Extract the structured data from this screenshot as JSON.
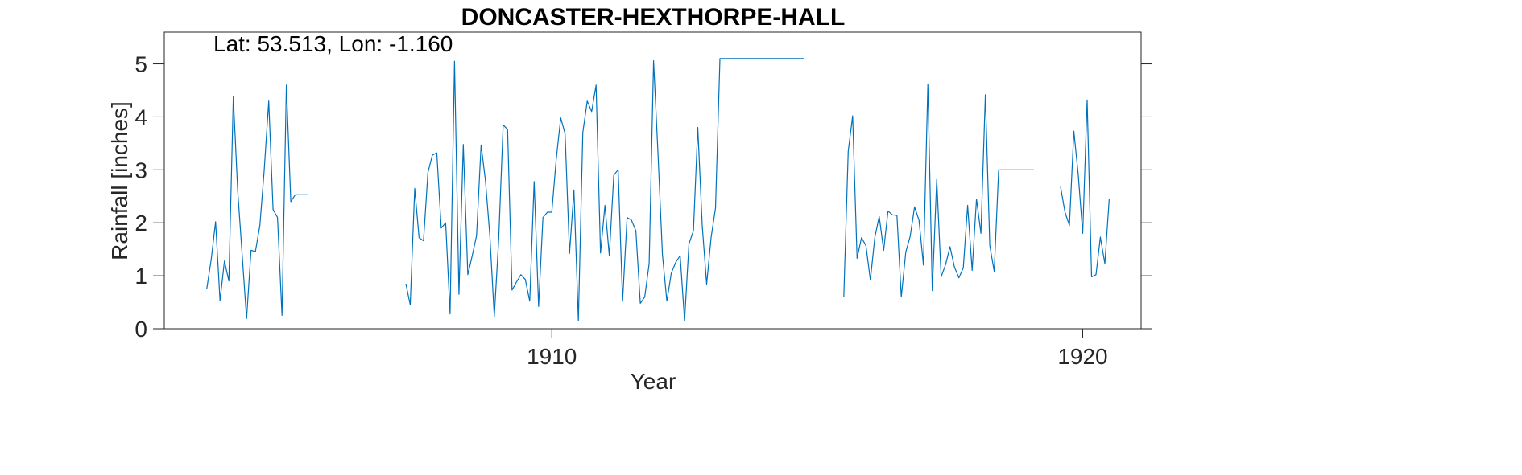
{
  "chart_data": {
    "type": "line",
    "title": "DONCASTER-HEXTHORPE-HALL",
    "annotation": "Lat: 53.513, Lon: -1.160",
    "xlabel": "Year",
    "ylabel": "Rainfall [inches]",
    "xlim": [
      1902.7,
      1921.1
    ],
    "ylim": [
      0,
      5.6
    ],
    "xticks": [
      1910,
      1920
    ],
    "xtick_labels": [
      "1910",
      "1920"
    ],
    "yticks": [
      0,
      1,
      2,
      3,
      4,
      5
    ],
    "ytick_labels": [
      "0",
      "1",
      "2",
      "3",
      "4",
      "5"
    ],
    "grid": false,
    "line_color": "#0072BD",
    "series": [
      {
        "segments": [
          {
            "x": [
              1903.5,
              1903.583,
              1903.667,
              1903.75,
              1903.833,
              1903.917,
              1904.0,
              1904.083,
              1904.167,
              1904.25,
              1904.333,
              1904.417,
              1904.5,
              1904.583,
              1904.667,
              1904.75,
              1904.833,
              1904.917,
              1905.0,
              1905.083,
              1905.167,
              1905.25,
              1905.333,
              1905.417
            ],
            "y": [
              0.75,
              1.3,
              2.02,
              0.53,
              1.28,
              0.9,
              4.38,
              2.6,
              1.4,
              0.19,
              1.48,
              1.46,
              1.95,
              3.0,
              4.3,
              2.25,
              2.1,
              0.25,
              4.6,
              2.4,
              2.53,
              2.53,
              2.53,
              2.53
            ]
          },
          {
            "x": [
              1907.25,
              1907.333,
              1907.417,
              1907.5,
              1907.583,
              1907.667,
              1907.75,
              1907.833,
              1907.917,
              1908.0,
              1908.083,
              1908.167,
              1908.25,
              1908.333,
              1908.417,
              1908.5,
              1908.583,
              1908.667,
              1908.75,
              1908.833,
              1908.917,
              1909.0,
              1909.083,
              1909.167,
              1909.25,
              1909.333,
              1909.417,
              1909.5,
              1909.583,
              1909.667,
              1909.75,
              1909.833,
              1909.917,
              1910.0,
              1910.083,
              1910.167,
              1910.25,
              1910.333,
              1910.417,
              1910.5,
              1910.583,
              1910.667,
              1910.75,
              1910.833,
              1910.917,
              1911.0,
              1911.083,
              1911.167,
              1911.25,
              1911.333,
              1911.417,
              1911.5,
              1911.583,
              1911.667,
              1911.75,
              1911.833,
              1911.917,
              1912.0,
              1912.083,
              1912.167,
              1912.25,
              1912.333,
              1912.417,
              1912.5,
              1912.583,
              1912.667,
              1912.75,
              1912.833,
              1912.917,
              1913.0,
              1913.083,
              1913.167,
              1913.25,
              1913.333,
              1913.417,
              1913.5,
              1913.583,
              1913.667,
              1913.75,
              1913.833,
              1913.917,
              1914.0,
              1914.083,
              1914.167,
              1914.25,
              1914.333,
              1914.417,
              1914.5,
              1914.583,
              1914.667,
              1914.75
            ],
            "y": [
              0.85,
              0.45,
              2.65,
              1.72,
              1.66,
              2.95,
              3.28,
              3.32,
              1.9,
              2.0,
              0.28,
              5.05,
              0.65,
              3.48,
              1.02,
              1.38,
              1.76,
              3.47,
              2.8,
              1.75,
              0.23,
              1.7,
              3.85,
              3.76,
              0.73,
              0.88,
              1.02,
              0.93,
              0.52,
              2.78,
              0.42,
              2.1,
              2.2,
              2.2,
              3.2,
              3.98,
              3.68,
              1.42,
              2.62,
              0.15,
              3.7,
              4.3,
              4.1,
              4.6,
              1.43,
              2.33,
              1.38,
              2.9,
              3.0,
              0.52,
              2.1,
              2.05,
              1.85,
              0.48,
              0.6,
              1.23,
              5.06,
              3.3,
              1.4,
              0.52,
              1.05,
              1.25,
              1.38,
              0.15,
              1.6,
              1.85,
              3.8,
              1.95,
              0.84,
              1.72,
              2.28,
              5.1,
              5.1,
              5.1,
              5.1,
              5.1,
              5.1,
              5.1,
              5.1,
              5.1,
              5.1,
              5.1,
              5.1,
              5.1,
              5.1,
              5.1,
              5.1,
              5.1,
              5.1,
              5.1,
              5.1
            ]
          },
          {
            "x": [
              1915.5,
              1915.583,
              1915.667,
              1915.75,
              1915.833,
              1915.917,
              1916.0,
              1916.083,
              1916.167,
              1916.25,
              1916.333,
              1916.417,
              1916.5,
              1916.583,
              1916.667,
              1916.75,
              1916.833,
              1916.917,
              1917.0,
              1917.083,
              1917.167,
              1917.25,
              1917.333,
              1917.417,
              1917.5,
              1917.583,
              1917.667,
              1917.75,
              1917.833,
              1917.917,
              1918.0,
              1918.083,
              1918.167,
              1918.25,
              1918.333,
              1918.417,
              1918.5,
              1918.583,
              1918.667,
              1918.75,
              1918.833,
              1918.917,
              1919.0,
              1919.083
            ],
            "y": [
              0.6,
              3.35,
              4.02,
              1.33,
              1.72,
              1.57,
              0.92,
              1.72,
              2.12,
              1.48,
              2.22,
              2.15,
              2.14,
              0.6,
              1.45,
              1.74,
              2.3,
              2.05,
              1.2,
              4.62,
              0.72,
              2.82,
              0.98,
              1.21,
              1.55,
              1.17,
              0.96,
              1.15,
              2.33,
              1.1,
              2.45,
              1.8,
              4.42,
              1.57,
              1.08,
              3.0,
              3.0,
              3.0,
              3.0,
              3.0,
              3.0,
              3.0,
              3.0,
              3.0
            ]
          },
          {
            "x": [
              1919.583,
              1919.667,
              1919.75,
              1919.833,
              1919.917,
              1920.0,
              1920.083,
              1920.167,
              1920.25,
              1920.333,
              1920.417,
              1920.5
            ],
            "y": [
              2.68,
              2.2,
              1.95,
              3.73,
              2.9,
              1.8,
              4.32,
              0.98,
              1.02,
              1.73,
              1.23,
              2.45
            ]
          }
        ]
      }
    ]
  }
}
